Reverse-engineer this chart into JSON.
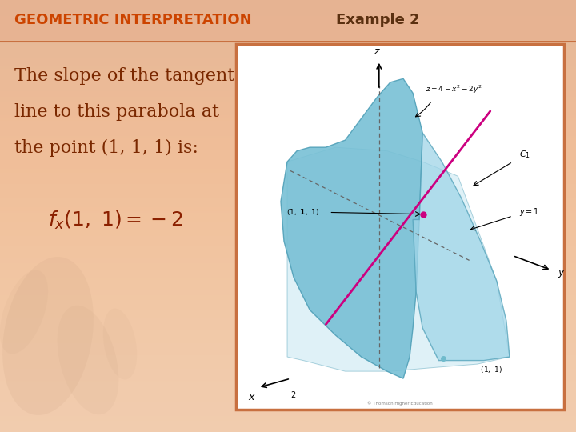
{
  "bg_color": "#f0c8a8",
  "title_text": "GEOMETRIC INTERPRETATION",
  "title_color": "#cc4400",
  "title_fontsize": 13,
  "example_text": "Example 2",
  "example_color": "#5a3010",
  "example_fontsize": 13,
  "body_lines": [
    "The slope of the tangent",
    "line to this parabola at",
    "the point (1, 1, 1) is:"
  ],
  "body_color": "#7a2800",
  "body_fontsize": 16,
  "formula_color": "#8B2000",
  "formula_fontsize": 16,
  "image_border_color": "#c87040",
  "title_band_color": "#e8b090",
  "title_band_alpha": 0.6,
  "divider_color": "#c87040",
  "watermark_color": "#c09878"
}
